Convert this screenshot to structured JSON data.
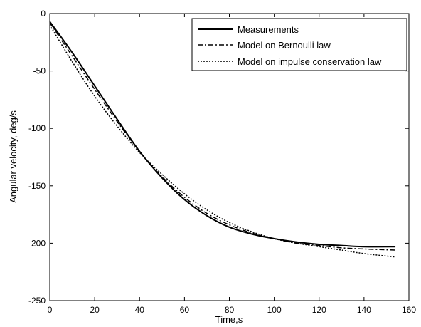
{
  "chart_data": {
    "type": "line",
    "title": "",
    "xlabel": "Time,s",
    "ylabel": "Angular velocity, deg/s",
    "xlim": [
      0,
      160
    ],
    "ylim": [
      -250,
      0
    ],
    "xticks": [
      "0",
      "20",
      "40",
      "60",
      "80",
      "100",
      "120",
      "140",
      "160"
    ],
    "yticks": [
      "0",
      "-50",
      "-100",
      "-150",
      "-200",
      "-250"
    ],
    "grid": false,
    "legend_position": "top-right",
    "series": [
      {
        "name": "Measurements",
        "style": "solid",
        "x": [
          0,
          10,
          20,
          30,
          40,
          50,
          60,
          70,
          80,
          90,
          100,
          110,
          120,
          130,
          140,
          154
        ],
        "y": [
          -7,
          -34,
          -63,
          -92,
          -120,
          -143,
          -162,
          -176,
          -186,
          -192,
          -196,
          -199,
          -201,
          -202,
          -203,
          -203
        ]
      },
      {
        "name": "Model on Bernoulli law",
        "style": "dashdot",
        "x": [
          0,
          10,
          20,
          30,
          40,
          50,
          60,
          70,
          80,
          90,
          100,
          110,
          120,
          130,
          140,
          154
        ],
        "y": [
          -8,
          -37,
          -66,
          -94,
          -120,
          -142,
          -160,
          -174,
          -184,
          -191,
          -196,
          -200,
          -202,
          -204,
          -205,
          -206
        ]
      },
      {
        "name": "Model on impulse conservation law",
        "style": "dotted",
        "x": [
          0,
          10,
          20,
          30,
          40,
          50,
          60,
          70,
          80,
          90,
          100,
          110,
          120,
          130,
          140,
          154
        ],
        "y": [
          -10,
          -42,
          -72,
          -98,
          -121,
          -140,
          -157,
          -171,
          -182,
          -190,
          -196,
          -200,
          -203,
          -206,
          -209,
          -212
        ]
      }
    ]
  }
}
